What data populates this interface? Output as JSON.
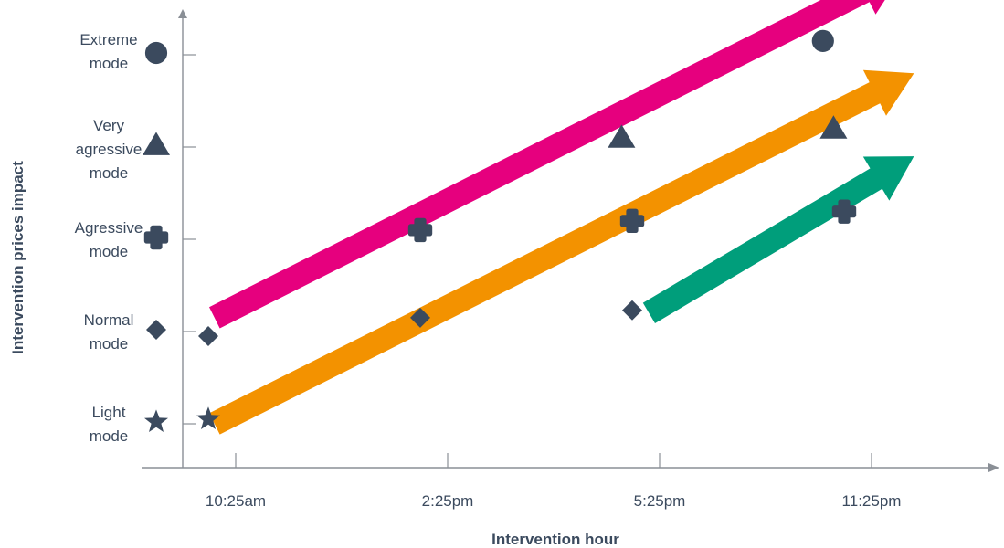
{
  "chart_data": {
    "type": "scatter",
    "xlabel": "Intervention hour",
    "ylabel": "Intervention prices impact",
    "x_categories": [
      "10:25am",
      "2:25pm",
      "5:25pm",
      "11:25pm"
    ],
    "y_levels": [
      {
        "lines": [
          "Light",
          "mode"
        ],
        "marker": "star"
      },
      {
        "lines": [
          "Normal",
          "mode"
        ],
        "marker": "diamond"
      },
      {
        "lines": [
          "Agressive",
          "mode"
        ],
        "marker": "cross"
      },
      {
        "lines": [
          "Very",
          "agressive",
          "mode"
        ],
        "marker": "triangle"
      },
      {
        "lines": [
          "Extreme",
          "mode"
        ],
        "marker": "circle"
      }
    ],
    "arrows": [
      {
        "color": "#e6007e",
        "from": [
          -0.1,
          1.15
        ],
        "to": [
          3.15,
          4.9
        ]
      },
      {
        "color": "#f39200",
        "from": [
          -0.1,
          0.0
        ],
        "to": [
          3.2,
          3.8
        ]
      },
      {
        "color": "#009e7b",
        "from": [
          1.95,
          1.2
        ],
        "to": [
          3.2,
          2.9
        ]
      }
    ],
    "points": [
      {
        "x": 0,
        "y": 0.95,
        "marker": "diamond"
      },
      {
        "x": 1,
        "y": 2.1,
        "marker": "cross"
      },
      {
        "x": 1.95,
        "y": 3.1,
        "marker": "triangle"
      },
      {
        "x": 2.9,
        "y": 4.15,
        "marker": "circle"
      },
      {
        "x": 0,
        "y": 0.05,
        "marker": "star"
      },
      {
        "x": 1,
        "y": 1.15,
        "marker": "diamond"
      },
      {
        "x": 2,
        "y": 2.2,
        "marker": "cross"
      },
      {
        "x": 2.95,
        "y": 3.2,
        "marker": "triangle"
      },
      {
        "x": 2.0,
        "y": 1.23,
        "marker": "diamond"
      },
      {
        "x": 3.0,
        "y": 2.3,
        "marker": "cross"
      }
    ],
    "grid": false,
    "legend": "none"
  }
}
